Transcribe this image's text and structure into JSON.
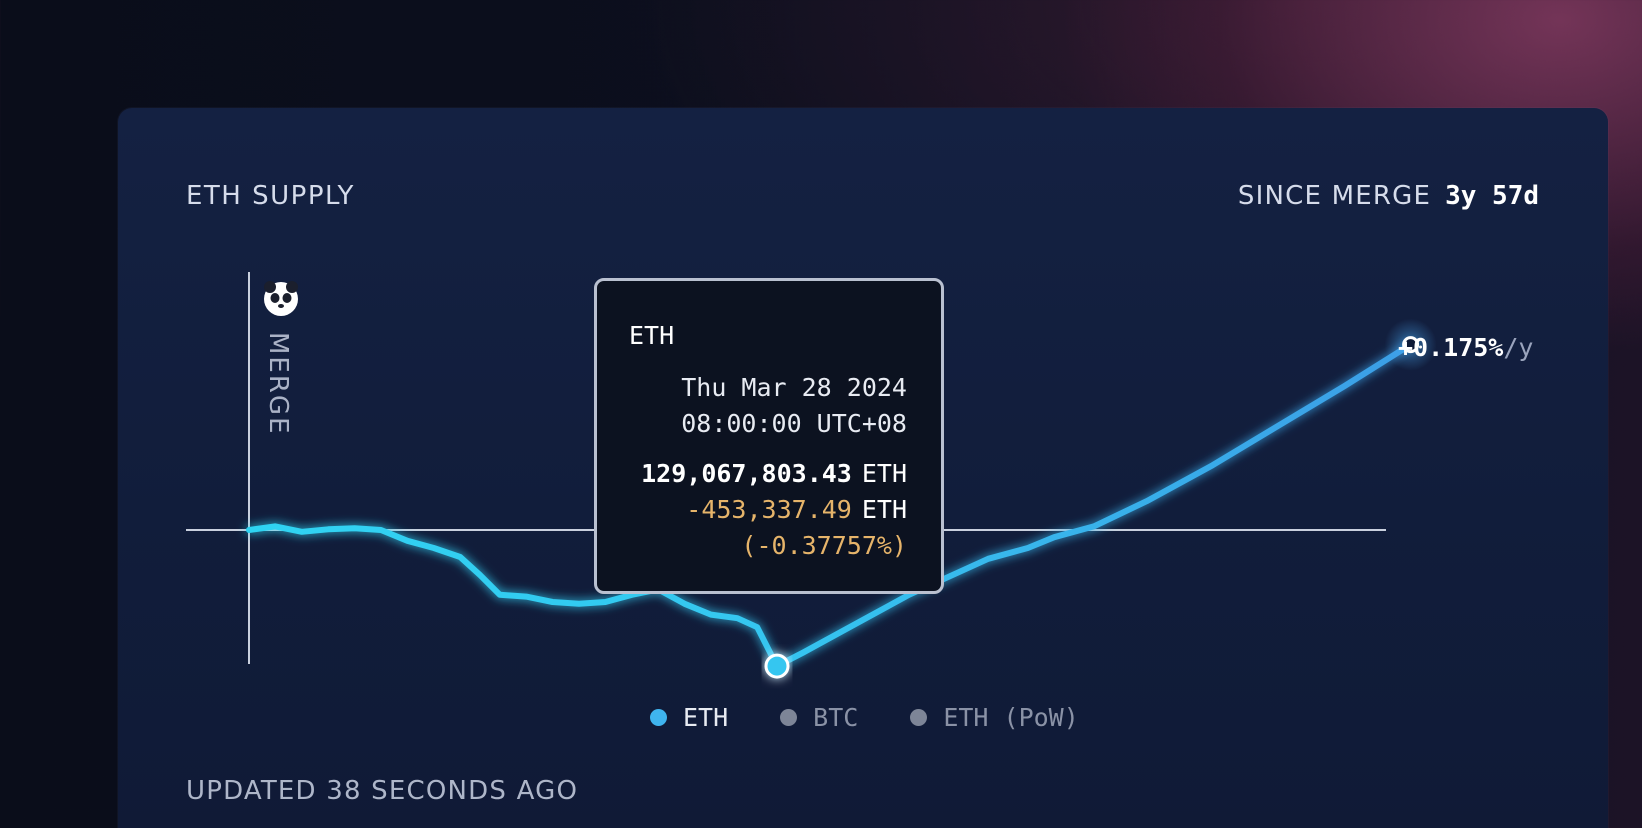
{
  "header": {
    "title": "ETH SUPPLY",
    "since_label": "SINCE MERGE",
    "since_value": "3y 57d"
  },
  "merge_marker": {
    "label": "MERGE",
    "icon": "panda-icon"
  },
  "rate": {
    "value": "+0.175%",
    "unit": "/y"
  },
  "tooltip": {
    "series": "ETH",
    "date": "Thu Mar 28 2024",
    "time": "08:00:00 UTC+08",
    "supply": "129,067,803.43",
    "supply_unit": "ETH",
    "change": "-453,337.49",
    "change_unit": "ETH",
    "change_pct": "(-0.37757%)"
  },
  "legend": [
    {
      "label": "ETH",
      "color": "#3fb4ee",
      "active": true
    },
    {
      "label": "BTC",
      "color": "#7d8597",
      "active": false
    },
    {
      "label": "ETH (PoW)",
      "color": "#7d8597",
      "active": false
    }
  ],
  "footer": {
    "updated": "UPDATED 38 SECONDS AGO"
  },
  "colors": {
    "line": "#32cdf0",
    "line_end": "#3b9ee6",
    "tooltip_change": "#e6b46a"
  },
  "chart_data": {
    "type": "line",
    "title": "ETH SUPPLY",
    "baseline_pct": 0,
    "series": [
      {
        "name": "ETH",
        "points": [
          {
            "t": 0.0,
            "pct": 0.0
          },
          {
            "t": 0.02,
            "pct": 0.01
          },
          {
            "t": 0.04,
            "pct": -0.005
          },
          {
            "t": 0.06,
            "pct": 0.002
          },
          {
            "t": 0.08,
            "pct": 0.005
          },
          {
            "t": 0.1,
            "pct": 0.0
          },
          {
            "t": 0.12,
            "pct": -0.03
          },
          {
            "t": 0.14,
            "pct": -0.05
          },
          {
            "t": 0.16,
            "pct": -0.075
          },
          {
            "t": 0.175,
            "pct": -0.125
          },
          {
            "t": 0.19,
            "pct": -0.18
          },
          {
            "t": 0.21,
            "pct": -0.185
          },
          {
            "t": 0.23,
            "pct": -0.2
          },
          {
            "t": 0.25,
            "pct": -0.205
          },
          {
            "t": 0.27,
            "pct": -0.2
          },
          {
            "t": 0.29,
            "pct": -0.18
          },
          {
            "t": 0.31,
            "pct": -0.165
          },
          {
            "t": 0.33,
            "pct": -0.205
          },
          {
            "t": 0.35,
            "pct": -0.235
          },
          {
            "t": 0.37,
            "pct": -0.245
          },
          {
            "t": 0.385,
            "pct": -0.27
          },
          {
            "t": 0.4,
            "pct": -0.378
          },
          {
            "t": 0.42,
            "pct": -0.34
          },
          {
            "t": 0.44,
            "pct": -0.3
          },
          {
            "t": 0.47,
            "pct": -0.24
          },
          {
            "t": 0.5,
            "pct": -0.18
          },
          {
            "t": 0.53,
            "pct": -0.13
          },
          {
            "t": 0.56,
            "pct": -0.08
          },
          {
            "t": 0.59,
            "pct": -0.05
          },
          {
            "t": 0.61,
            "pct": -0.02
          },
          {
            "t": 0.64,
            "pct": 0.01
          },
          {
            "t": 0.68,
            "pct": 0.08
          },
          {
            "t": 0.73,
            "pct": 0.18
          },
          {
            "t": 0.78,
            "pct": 0.29
          },
          {
            "t": 0.83,
            "pct": 0.4
          },
          {
            "t": 0.88,
            "pct": 0.515
          }
        ],
        "highlight_index": 21,
        "end_index": 35
      }
    ]
  }
}
